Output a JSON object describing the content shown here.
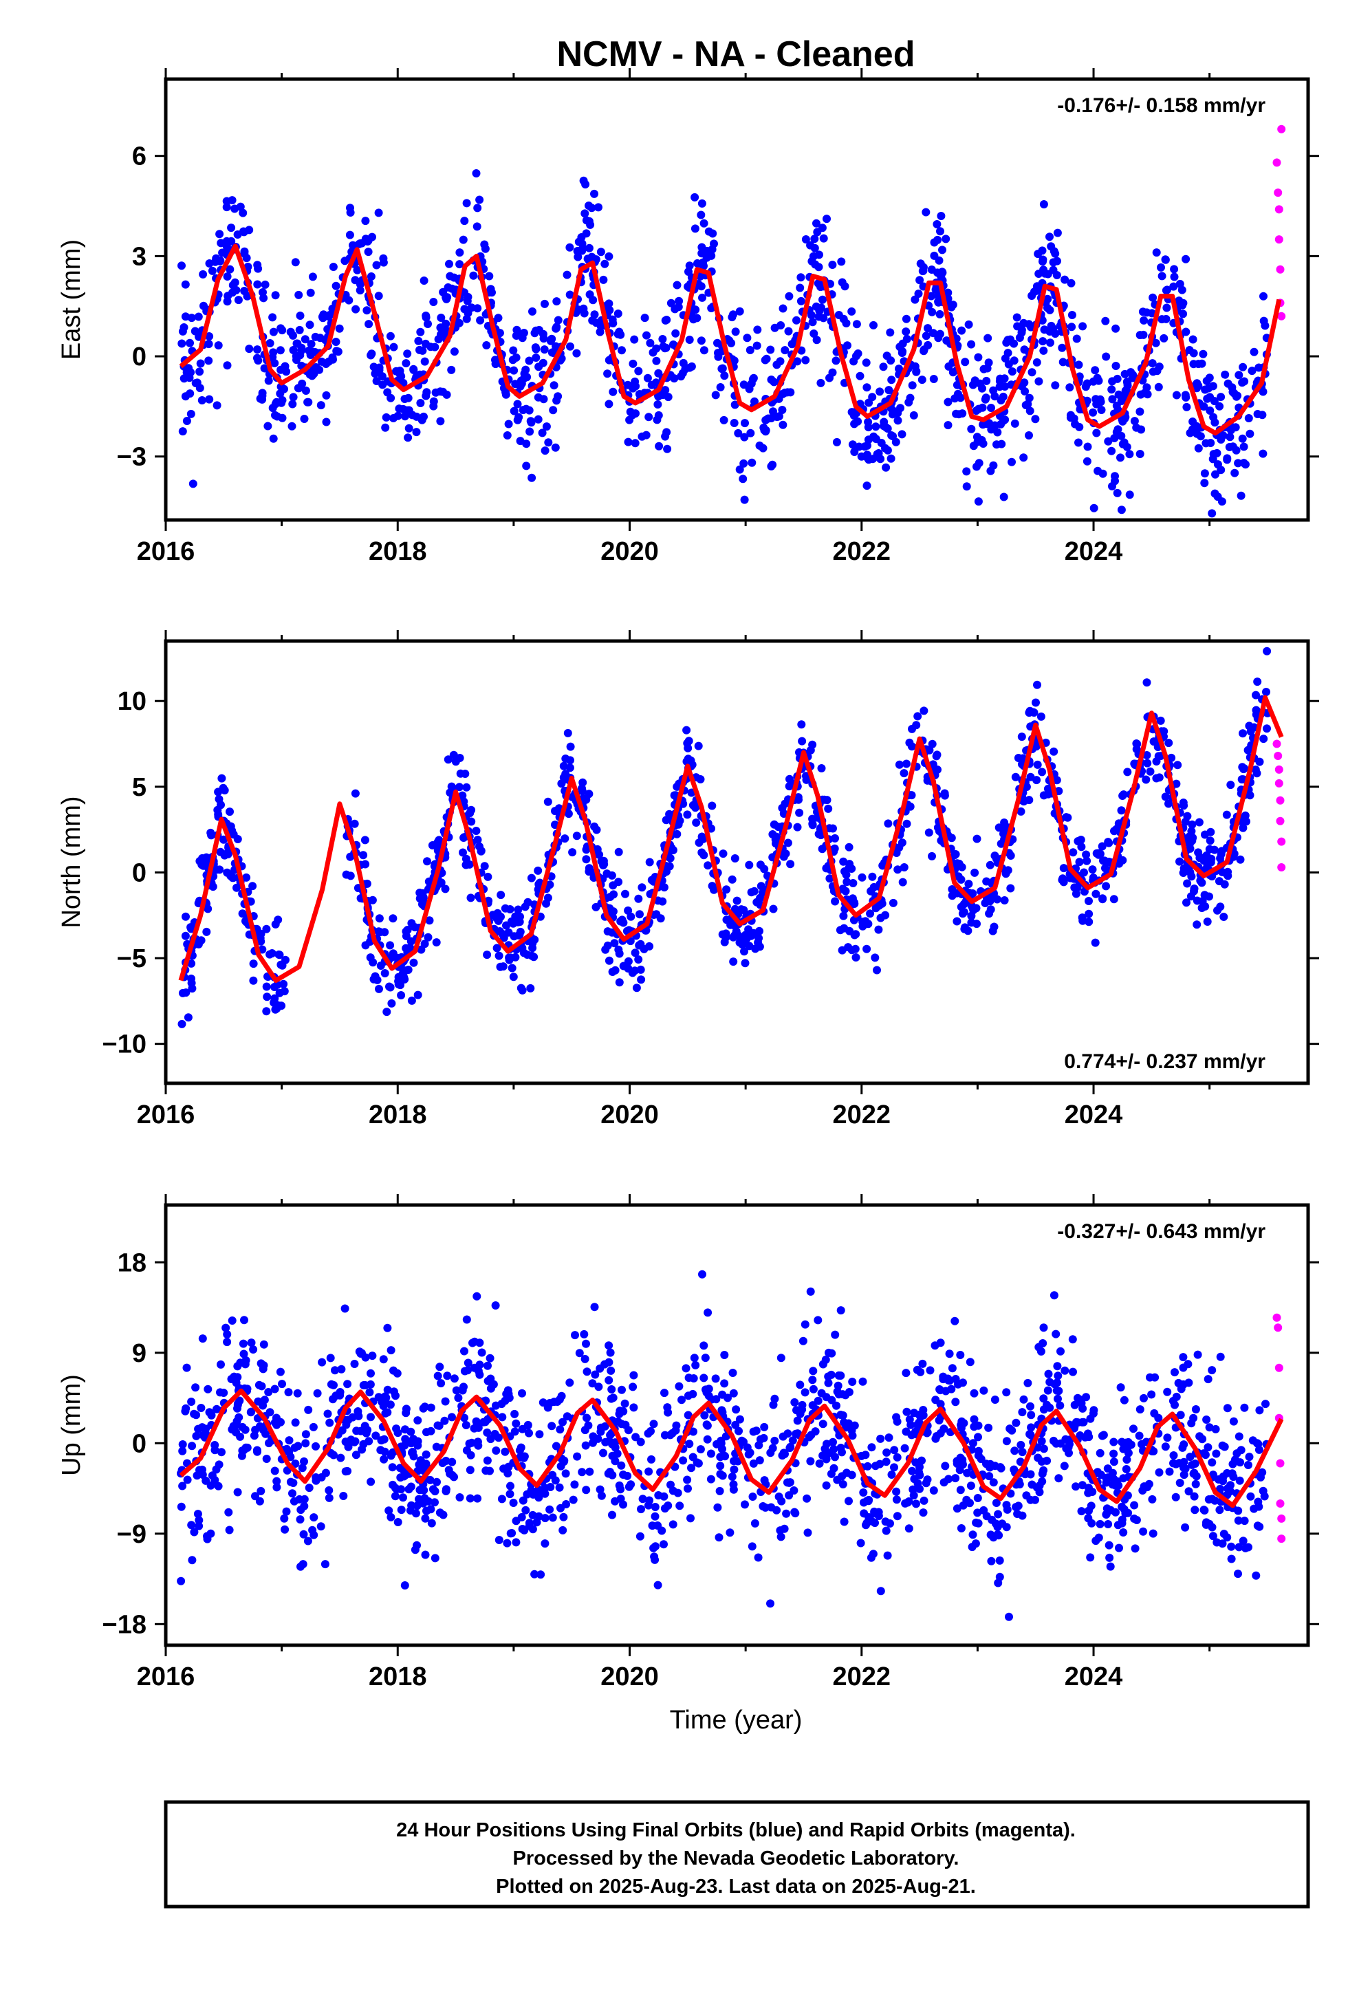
{
  "title": "NCMV  - NA - Cleaned",
  "xlabel": "Time (year)",
  "footer": {
    "line1": "24 Hour Positions Using Final Orbits (blue) and Rapid Orbits (magenta).",
    "line2": "Processed by the Nevada Geodetic Laboratory.",
    "line3": "Plotted on 2025-Aug-23. Last data on 2025-Aug-21."
  },
  "colors": {
    "final": "#0000ff",
    "rapid": "#ff00ff",
    "model": "#ff0000",
    "frame": "#000000"
  },
  "chart_data": [
    {
      "type": "scatter",
      "panel": "east",
      "ylabel": "East (mm)",
      "rate": "-0.176+/- 0.158 mm/yr",
      "rate_position": "top-right",
      "xlim": [
        2016.0,
        2025.85
      ],
      "ylim": [
        -4.9,
        8.3
      ],
      "xticks": [
        2016,
        2018,
        2020,
        2022,
        2024
      ],
      "yticks": [
        -3,
        0,
        3,
        6
      ],
      "x_tick_labels": [
        "2016",
        "2018",
        "2020",
        "2022",
        "2024"
      ],
      "y_tick_labels": [
        "−3",
        "0",
        "3",
        "6"
      ],
      "series": [
        {
          "role": "final",
          "x_range": [
            2016.13,
            2025.5
          ],
          "scatter_sd": 1.1
        },
        {
          "role": "rapid",
          "x": [
            2025.58,
            2025.59,
            2025.6,
            2025.6,
            2025.61,
            2025.61,
            2025.62,
            2025.62
          ],
          "y": [
            5.8,
            4.9,
            4.4,
            3.5,
            2.6,
            1.6,
            1.2,
            6.8
          ]
        },
        {
          "role": "model",
          "curve": [
            [
              2016.13,
              -0.3
            ],
            [
              2016.3,
              0.2
            ],
            [
              2016.45,
              2.3
            ],
            [
              2016.6,
              3.3
            ],
            [
              2016.75,
              1.8
            ],
            [
              2016.9,
              -0.4
            ],
            [
              2017.0,
              -0.8
            ],
            [
              2017.2,
              -0.4
            ],
            [
              2017.4,
              0.3
            ],
            [
              2017.55,
              2.4
            ],
            [
              2017.65,
              3.2
            ],
            [
              2017.8,
              1.3
            ],
            [
              2017.95,
              -0.7
            ],
            [
              2018.05,
              -1.0
            ],
            [
              2018.25,
              -0.6
            ],
            [
              2018.45,
              0.6
            ],
            [
              2018.58,
              2.7
            ],
            [
              2018.68,
              3.0
            ],
            [
              2018.82,
              0.9
            ],
            [
              2018.95,
              -0.9
            ],
            [
              2019.05,
              -1.2
            ],
            [
              2019.25,
              -0.8
            ],
            [
              2019.45,
              0.5
            ],
            [
              2019.58,
              2.6
            ],
            [
              2019.68,
              2.8
            ],
            [
              2019.82,
              0.6
            ],
            [
              2019.95,
              -1.2
            ],
            [
              2020.05,
              -1.4
            ],
            [
              2020.25,
              -1.0
            ],
            [
              2020.45,
              0.5
            ],
            [
              2020.58,
              2.6
            ],
            [
              2020.68,
              2.5
            ],
            [
              2020.82,
              0.3
            ],
            [
              2020.95,
              -1.4
            ],
            [
              2021.05,
              -1.6
            ],
            [
              2021.25,
              -1.2
            ],
            [
              2021.45,
              0.3
            ],
            [
              2021.58,
              2.4
            ],
            [
              2021.68,
              2.3
            ],
            [
              2021.82,
              0.1
            ],
            [
              2021.95,
              -1.5
            ],
            [
              2022.05,
              -1.8
            ],
            [
              2022.25,
              -1.4
            ],
            [
              2022.45,
              0.2
            ],
            [
              2022.58,
              2.2
            ],
            [
              2022.68,
              2.2
            ],
            [
              2022.82,
              -0.2
            ],
            [
              2022.95,
              -1.8
            ],
            [
              2023.05,
              -1.9
            ],
            [
              2023.25,
              -1.5
            ],
            [
              2023.45,
              0.0
            ],
            [
              2023.58,
              2.1
            ],
            [
              2023.68,
              2.0
            ],
            [
              2023.82,
              -0.4
            ],
            [
              2023.95,
              -1.9
            ],
            [
              2024.05,
              -2.1
            ],
            [
              2024.25,
              -1.7
            ],
            [
              2024.45,
              -0.2
            ],
            [
              2024.58,
              1.8
            ],
            [
              2024.68,
              1.8
            ],
            [
              2024.82,
              -0.7
            ],
            [
              2024.95,
              -2.1
            ],
            [
              2025.05,
              -2.3
            ],
            [
              2025.25,
              -1.8
            ],
            [
              2025.45,
              -0.8
            ],
            [
              2025.6,
              1.7
            ]
          ]
        }
      ]
    },
    {
      "type": "scatter",
      "panel": "north",
      "ylabel": "North (mm)",
      "rate": "0.774+/- 0.237 mm/yr",
      "rate_position": "bottom-right",
      "xlim": [
        2016.0,
        2025.85
      ],
      "ylim": [
        -12.3,
        13.5
      ],
      "xticks": [
        2016,
        2018,
        2020,
        2022,
        2024
      ],
      "yticks": [
        -10,
        -5,
        0,
        5,
        10
      ],
      "x_tick_labels": [
        "2016",
        "2018",
        "2020",
        "2022",
        "2024"
      ],
      "y_tick_labels": [
        "−10",
        "−5",
        "0",
        "5",
        "10"
      ],
      "series": [
        {
          "role": "final",
          "x_range": [
            2016.13,
            2025.5
          ],
          "scatter_sd": 1.4
        },
        {
          "role": "rapid",
          "x": [
            2025.58,
            2025.59,
            2025.6,
            2025.6,
            2025.61,
            2025.61,
            2025.62,
            2025.62
          ],
          "y": [
            7.5,
            6.8,
            6.0,
            5.2,
            4.2,
            3.0,
            1.8,
            0.3
          ]
        },
        {
          "role": "model",
          "curve": [
            [
              2016.13,
              -6.3
            ],
            [
              2016.3,
              -2.5
            ],
            [
              2016.48,
              3.1
            ],
            [
              2016.6,
              1.0
            ],
            [
              2016.8,
              -4.8
            ],
            [
              2016.95,
              -6.3
            ],
            [
              2017.15,
              -5.5
            ],
            [
              2017.35,
              -1.0
            ],
            [
              2017.5,
              4.0
            ],
            [
              2017.62,
              1.5
            ],
            [
              2017.8,
              -4.0
            ],
            [
              2017.95,
              -5.6
            ],
            [
              2018.15,
              -4.6
            ],
            [
              2018.35,
              0.2
            ],
            [
              2018.5,
              4.7
            ],
            [
              2018.62,
              2.0
            ],
            [
              2018.8,
              -3.4
            ],
            [
              2018.95,
              -4.6
            ],
            [
              2019.15,
              -3.6
            ],
            [
              2019.35,
              1.5
            ],
            [
              2019.5,
              5.5
            ],
            [
              2019.62,
              3.0
            ],
            [
              2019.8,
              -2.5
            ],
            [
              2019.95,
              -3.9
            ],
            [
              2020.15,
              -3.0
            ],
            [
              2020.35,
              2.2
            ],
            [
              2020.5,
              6.2
            ],
            [
              2020.62,
              3.8
            ],
            [
              2020.8,
              -1.8
            ],
            [
              2020.95,
              -3.0
            ],
            [
              2021.15,
              -2.2
            ],
            [
              2021.35,
              2.8
            ],
            [
              2021.5,
              7.0
            ],
            [
              2021.62,
              4.5
            ],
            [
              2021.8,
              -1.3
            ],
            [
              2021.95,
              -2.5
            ],
            [
              2022.15,
              -1.5
            ],
            [
              2022.35,
              3.5
            ],
            [
              2022.5,
              7.8
            ],
            [
              2022.62,
              5.3
            ],
            [
              2022.8,
              -0.6
            ],
            [
              2022.95,
              -1.7
            ],
            [
              2023.15,
              -0.9
            ],
            [
              2023.35,
              4.2
            ],
            [
              2023.5,
              8.6
            ],
            [
              2023.62,
              6.0
            ],
            [
              2023.8,
              0.2
            ],
            [
              2023.95,
              -0.9
            ],
            [
              2024.15,
              -0.1
            ],
            [
              2024.35,
              5.0
            ],
            [
              2024.5,
              9.3
            ],
            [
              2024.62,
              6.8
            ],
            [
              2024.8,
              0.8
            ],
            [
              2024.95,
              -0.2
            ],
            [
              2025.15,
              0.6
            ],
            [
              2025.35,
              6.0
            ],
            [
              2025.48,
              10.2
            ],
            [
              2025.62,
              7.9
            ]
          ]
        }
      ]
    },
    {
      "type": "scatter",
      "panel": "up",
      "ylabel": "Up (mm)",
      "rate": "-0.327+/- 0.643 mm/yr",
      "rate_position": "top-right",
      "xlim": [
        2016.0,
        2025.85
      ],
      "ylim": [
        -20.1,
        23.7
      ],
      "xticks": [
        2016,
        2018,
        2020,
        2022,
        2024
      ],
      "yticks": [
        -18,
        -9,
        0,
        9,
        18
      ],
      "x_tick_labels": [
        "2016",
        "2018",
        "2020",
        "2022",
        "2024"
      ],
      "y_tick_labels": [
        "−18",
        "−9",
        "0",
        "9",
        "18"
      ],
      "series": [
        {
          "role": "final",
          "x_range": [
            2016.13,
            2025.5
          ],
          "scatter_sd": 4.2
        },
        {
          "role": "rapid",
          "x": [
            2025.58,
            2025.59,
            2025.6,
            2025.6,
            2025.61,
            2025.61,
            2025.62,
            2025.62
          ],
          "y": [
            12.5,
            11.5,
            7.5,
            2.5,
            -2.0,
            -6.0,
            -7.5,
            -9.5
          ]
        },
        {
          "role": "model",
          "curve": [
            [
              2016.13,
              -3.2
            ],
            [
              2016.3,
              -1.5
            ],
            [
              2016.5,
              3.5
            ],
            [
              2016.65,
              5.2
            ],
            [
              2016.85,
              2.5
            ],
            [
              2017.05,
              -2.0
            ],
            [
              2017.2,
              -3.8
            ],
            [
              2017.4,
              -0.5
            ],
            [
              2017.55,
              3.5
            ],
            [
              2017.68,
              5.1
            ],
            [
              2017.88,
              2.2
            ],
            [
              2018.05,
              -2.0
            ],
            [
              2018.2,
              -3.8
            ],
            [
              2018.4,
              -0.8
            ],
            [
              2018.55,
              3.2
            ],
            [
              2018.68,
              4.6
            ],
            [
              2018.88,
              1.8
            ],
            [
              2019.05,
              -2.5
            ],
            [
              2019.2,
              -4.2
            ],
            [
              2019.4,
              -1.0
            ],
            [
              2019.55,
              3.0
            ],
            [
              2019.68,
              4.3
            ],
            [
              2019.88,
              1.2
            ],
            [
              2020.05,
              -3.0
            ],
            [
              2020.2,
              -4.6
            ],
            [
              2020.4,
              -1.3
            ],
            [
              2020.55,
              2.6
            ],
            [
              2020.68,
              4.0
            ],
            [
              2020.88,
              0.8
            ],
            [
              2021.05,
              -3.6
            ],
            [
              2021.2,
              -4.9
            ],
            [
              2021.4,
              -1.7
            ],
            [
              2021.55,
              2.3
            ],
            [
              2021.68,
              3.7
            ],
            [
              2021.88,
              0.4
            ],
            [
              2022.05,
              -4.0
            ],
            [
              2022.2,
              -5.2
            ],
            [
              2022.4,
              -2.0
            ],
            [
              2022.55,
              2.0
            ],
            [
              2022.68,
              3.4
            ],
            [
              2022.88,
              0.0
            ],
            [
              2023.05,
              -4.3
            ],
            [
              2023.2,
              -5.5
            ],
            [
              2023.4,
              -2.3
            ],
            [
              2023.55,
              1.8
            ],
            [
              2023.68,
              3.2
            ],
            [
              2023.88,
              -0.3
            ],
            [
              2024.05,
              -4.6
            ],
            [
              2024.2,
              -5.8
            ],
            [
              2024.4,
              -2.5
            ],
            [
              2024.55,
              1.6
            ],
            [
              2024.68,
              2.9
            ],
            [
              2024.88,
              -0.6
            ],
            [
              2025.05,
              -4.9
            ],
            [
              2025.2,
              -6.2
            ],
            [
              2025.4,
              -2.8
            ],
            [
              2025.62,
              2.4
            ]
          ]
        }
      ]
    }
  ]
}
